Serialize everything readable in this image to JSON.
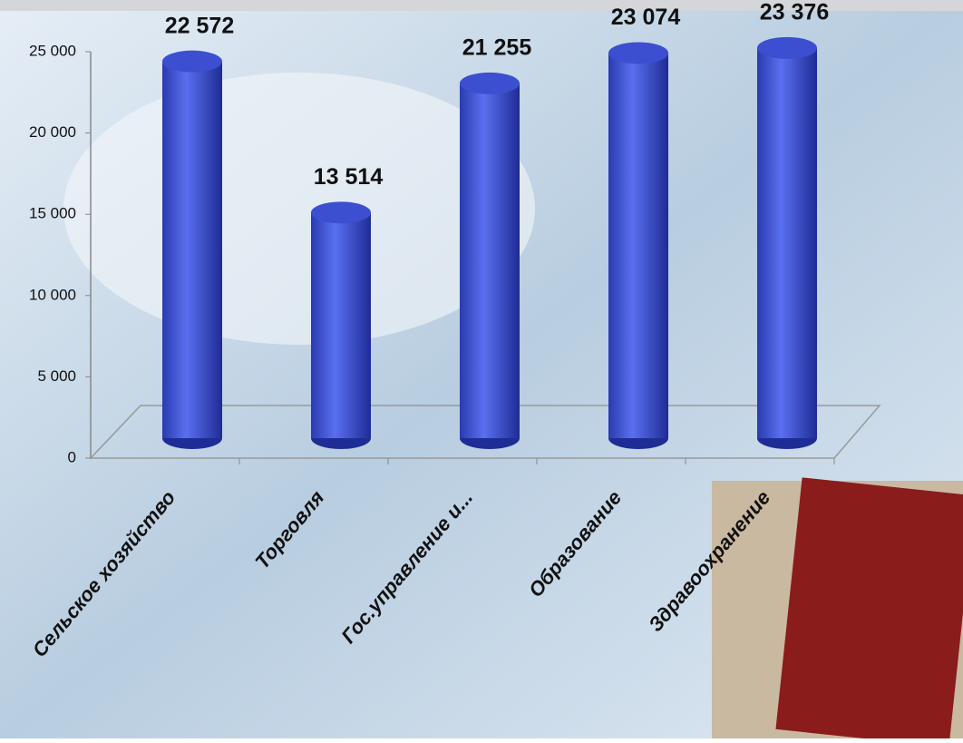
{
  "chart_data": {
    "type": "bar",
    "categories": [
      "Сельское хозяйство",
      "Торговля",
      "Гос.управление и...",
      "Образование",
      "Здравоохранение"
    ],
    "values": [
      22572,
      13514,
      21255,
      23074,
      23376
    ],
    "value_labels": [
      "22 572",
      "13 514",
      "21 255",
      "23 074",
      "23 376"
    ],
    "color": "#3b4fd0",
    "ylim": [
      0,
      25000
    ],
    "yticks": [
      0,
      {
        "value": 5000,
        "label": "5 000"
      },
      {
        "value": 10000,
        "label": "10 000"
      },
      {
        "value": 15000,
        "label": "15 000"
      },
      {
        "value": 20000,
        "label": "20 000"
      },
      {
        "value": 25000,
        "label": "25 000"
      }
    ]
  }
}
